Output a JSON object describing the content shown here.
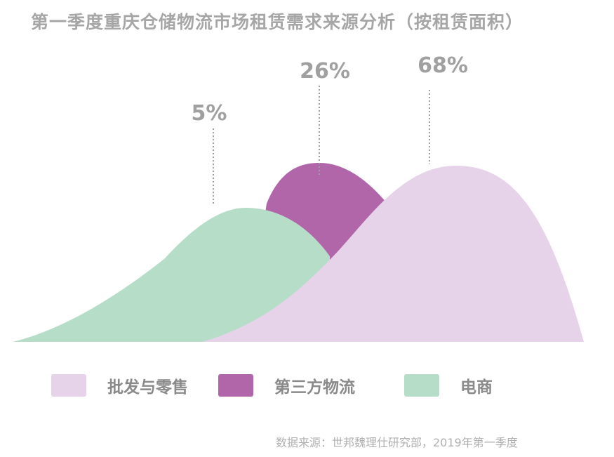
{
  "title": "第一季度重庆仓储物流市场租赁需求来源分析（按租赁面积）",
  "source": "数据来源：世邦魏理仕研究部，2019年第一季度",
  "colors": {
    "wholesale_retail": "#e6d3e9",
    "third_party_logistics": "#b066a8",
    "ecommerce": "#b5ddc8",
    "label": "#a0a0a0",
    "title": "#a6a6a6"
  },
  "chart_data": {
    "type": "area",
    "title": "第一季度重庆仓储物流市场租赁需求来源分析（按租赁面积）",
    "unit": "%",
    "categories": [
      "批发与零售",
      "第三方物流",
      "电商"
    ],
    "values": [
      68,
      26,
      5
    ],
    "data_labels": [
      "68%",
      "26%",
      "5%"
    ],
    "legend_placement": "bottom",
    "grid": false
  },
  "legend": [
    {
      "label": "批发与零售",
      "color": "#e6d3e9"
    },
    {
      "label": "第三方物流",
      "color": "#b066a8"
    },
    {
      "label": "电商",
      "color": "#b5ddc8"
    }
  ]
}
